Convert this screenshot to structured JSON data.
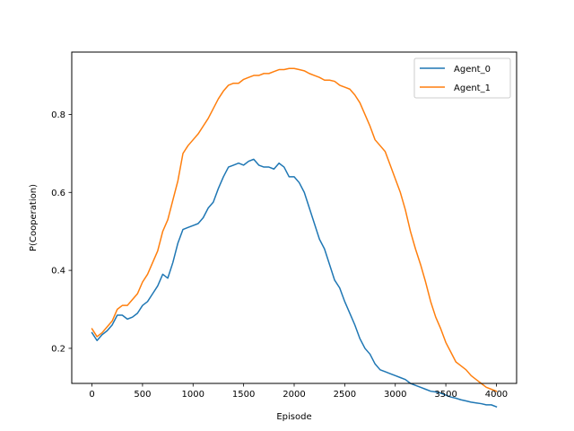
{
  "chart_data": {
    "type": "line",
    "title": "",
    "xlabel": "Episode",
    "ylabel": "P(Cooperation)",
    "xlim": [
      -200,
      4200
    ],
    "ylim": [
      0.11,
      0.96
    ],
    "xticks": [
      0,
      500,
      1000,
      1500,
      2000,
      2500,
      3000,
      3500,
      4000
    ],
    "yticks": [
      0.2,
      0.4,
      0.6,
      0.8
    ],
    "ytick_labels": [
      "0.2",
      "0.4",
      "0.6",
      "0.8"
    ],
    "grid": false,
    "legend_position": "upper right",
    "series": [
      {
        "name": "Agent_0",
        "color": "#1f77b4",
        "x": [
          0,
          50,
          100,
          150,
          200,
          250,
          300,
          350,
          400,
          450,
          500,
          550,
          600,
          650,
          700,
          750,
          800,
          850,
          900,
          950,
          1000,
          1050,
          1100,
          1150,
          1200,
          1250,
          1300,
          1350,
          1400,
          1450,
          1500,
          1550,
          1600,
          1650,
          1700,
          1750,
          1800,
          1850,
          1900,
          1950,
          2000,
          2050,
          2100,
          2150,
          2200,
          2250,
          2300,
          2350,
          2400,
          2450,
          2500,
          2550,
          2600,
          2650,
          2700,
          2750,
          2800,
          2850,
          2900,
          2950,
          3000,
          3050,
          3100,
          3150,
          3200,
          3250,
          3300,
          3350,
          3400,
          3450,
          3500,
          3550,
          3600,
          3650,
          3700,
          3750,
          3800,
          3850,
          3900,
          3950,
          4000
        ],
        "y": [
          0.24,
          0.22,
          0.235,
          0.245,
          0.26,
          0.285,
          0.285,
          0.275,
          0.28,
          0.29,
          0.31,
          0.32,
          0.34,
          0.36,
          0.39,
          0.38,
          0.42,
          0.47,
          0.505,
          0.51,
          0.515,
          0.52,
          0.535,
          0.56,
          0.575,
          0.61,
          0.64,
          0.665,
          0.67,
          0.675,
          0.67,
          0.68,
          0.685,
          0.67,
          0.665,
          0.665,
          0.66,
          0.675,
          0.665,
          0.64,
          0.64,
          0.625,
          0.6,
          0.56,
          0.52,
          0.48,
          0.455,
          0.415,
          0.375,
          0.355,
          0.32,
          0.29,
          0.26,
          0.225,
          0.2,
          0.185,
          0.16,
          0.145,
          0.14,
          0.135,
          0.13,
          0.125,
          0.12,
          0.11,
          0.105,
          0.1,
          0.095,
          0.09,
          0.088,
          0.085,
          0.08,
          0.075,
          0.072,
          0.068,
          0.065,
          0.062,
          0.06,
          0.058,
          0.055,
          0.055,
          0.05
        ]
      },
      {
        "name": "Agent_1",
        "color": "#ff7f0e",
        "x": [
          0,
          50,
          100,
          150,
          200,
          250,
          300,
          350,
          400,
          450,
          500,
          550,
          600,
          650,
          700,
          750,
          800,
          850,
          900,
          950,
          1000,
          1050,
          1100,
          1150,
          1200,
          1250,
          1300,
          1350,
          1400,
          1450,
          1500,
          1550,
          1600,
          1650,
          1700,
          1750,
          1800,
          1850,
          1900,
          1950,
          2000,
          2050,
          2100,
          2150,
          2200,
          2250,
          2300,
          2350,
          2400,
          2450,
          2500,
          2550,
          2600,
          2650,
          2700,
          2750,
          2800,
          2850,
          2900,
          2950,
          3000,
          3050,
          3100,
          3150,
          3200,
          3250,
          3300,
          3350,
          3400,
          3450,
          3500,
          3550,
          3600,
          3650,
          3700,
          3750,
          3800,
          3850,
          3900,
          3950,
          4000
        ],
        "y": [
          0.25,
          0.23,
          0.24,
          0.255,
          0.27,
          0.3,
          0.31,
          0.31,
          0.325,
          0.34,
          0.37,
          0.39,
          0.42,
          0.45,
          0.5,
          0.53,
          0.58,
          0.63,
          0.7,
          0.72,
          0.735,
          0.75,
          0.77,
          0.79,
          0.815,
          0.84,
          0.86,
          0.875,
          0.88,
          0.88,
          0.89,
          0.895,
          0.9,
          0.9,
          0.905,
          0.905,
          0.91,
          0.915,
          0.915,
          0.918,
          0.918,
          0.915,
          0.912,
          0.905,
          0.9,
          0.895,
          0.888,
          0.888,
          0.885,
          0.875,
          0.87,
          0.865,
          0.85,
          0.83,
          0.8,
          0.77,
          0.735,
          0.72,
          0.705,
          0.67,
          0.635,
          0.6,
          0.555,
          0.5,
          0.455,
          0.415,
          0.37,
          0.32,
          0.28,
          0.25,
          0.215,
          0.19,
          0.165,
          0.155,
          0.145,
          0.13,
          0.12,
          0.11,
          0.1,
          0.095,
          0.09
        ]
      }
    ]
  }
}
